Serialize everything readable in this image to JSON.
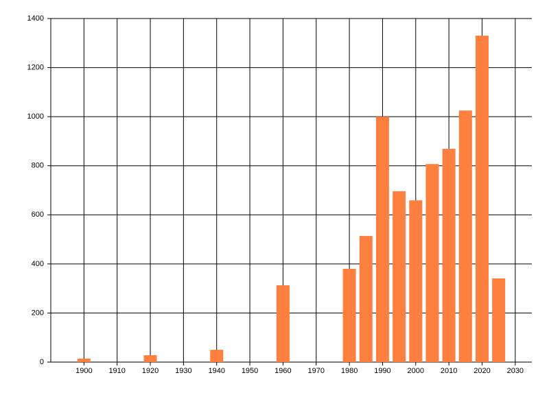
{
  "chart_data": {
    "type": "bar",
    "x": [
      1900,
      1920,
      1940,
      1960,
      1980,
      1985,
      1990,
      1995,
      2000,
      2005,
      2010,
      2015,
      2020,
      2025
    ],
    "values": [
      14,
      28,
      50,
      313,
      380,
      514,
      1000,
      696,
      659,
      807,
      869,
      1025,
      1330,
      341
    ],
    "color": "#ff7f3f",
    "xlim": [
      1890,
      2035
    ],
    "xticks": [
      1900,
      1910,
      1920,
      1930,
      1940,
      1950,
      1960,
      1970,
      1980,
      1990,
      2000,
      2010,
      2020,
      2030
    ],
    "ylim": [
      0,
      1400
    ],
    "yticks": [
      0,
      200,
      400,
      600,
      800,
      1000,
      1200,
      1400
    ],
    "grid": true
  }
}
